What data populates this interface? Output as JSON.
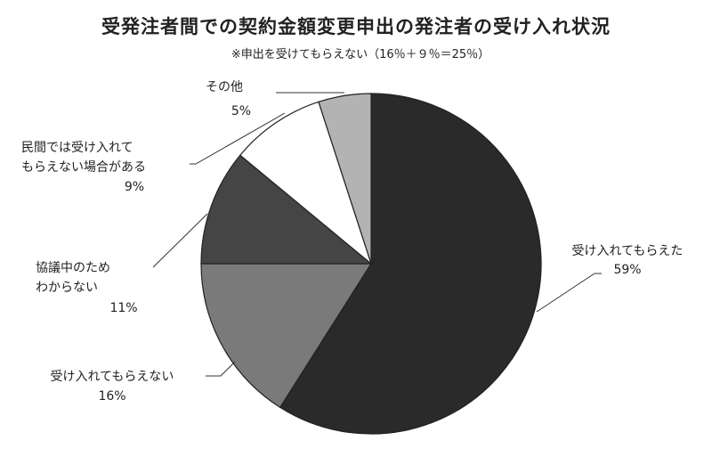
{
  "chart_data": {
    "type": "pie",
    "title": "受発注者間での契約金額変更申出の発注者の受け入れ状況",
    "subtitle": "※申出を受けてもらえない（16％＋９％＝25％）",
    "slices": [
      {
        "name": "受け入れてもらえた",
        "value": 59,
        "value_label": "59%",
        "color": "#2a2a2a"
      },
      {
        "name": "受け入れてもらえない",
        "value": 16,
        "value_label": "16%",
        "color": "#7a7a7a"
      },
      {
        "name": "協議中のため\nわからない",
        "value": 11,
        "value_label": "11%",
        "color": "#454545"
      },
      {
        "name": "民間では受け入れて\nもらえない場合がある",
        "value": 9,
        "value_label": "9%",
        "color": "#ffffff"
      },
      {
        "name": "その他",
        "value": 5,
        "value_label": "5%",
        "color": "#b3b3b3"
      }
    ],
    "start_angle": "12 o'clock",
    "direction": "clockwise",
    "legend": "none"
  }
}
